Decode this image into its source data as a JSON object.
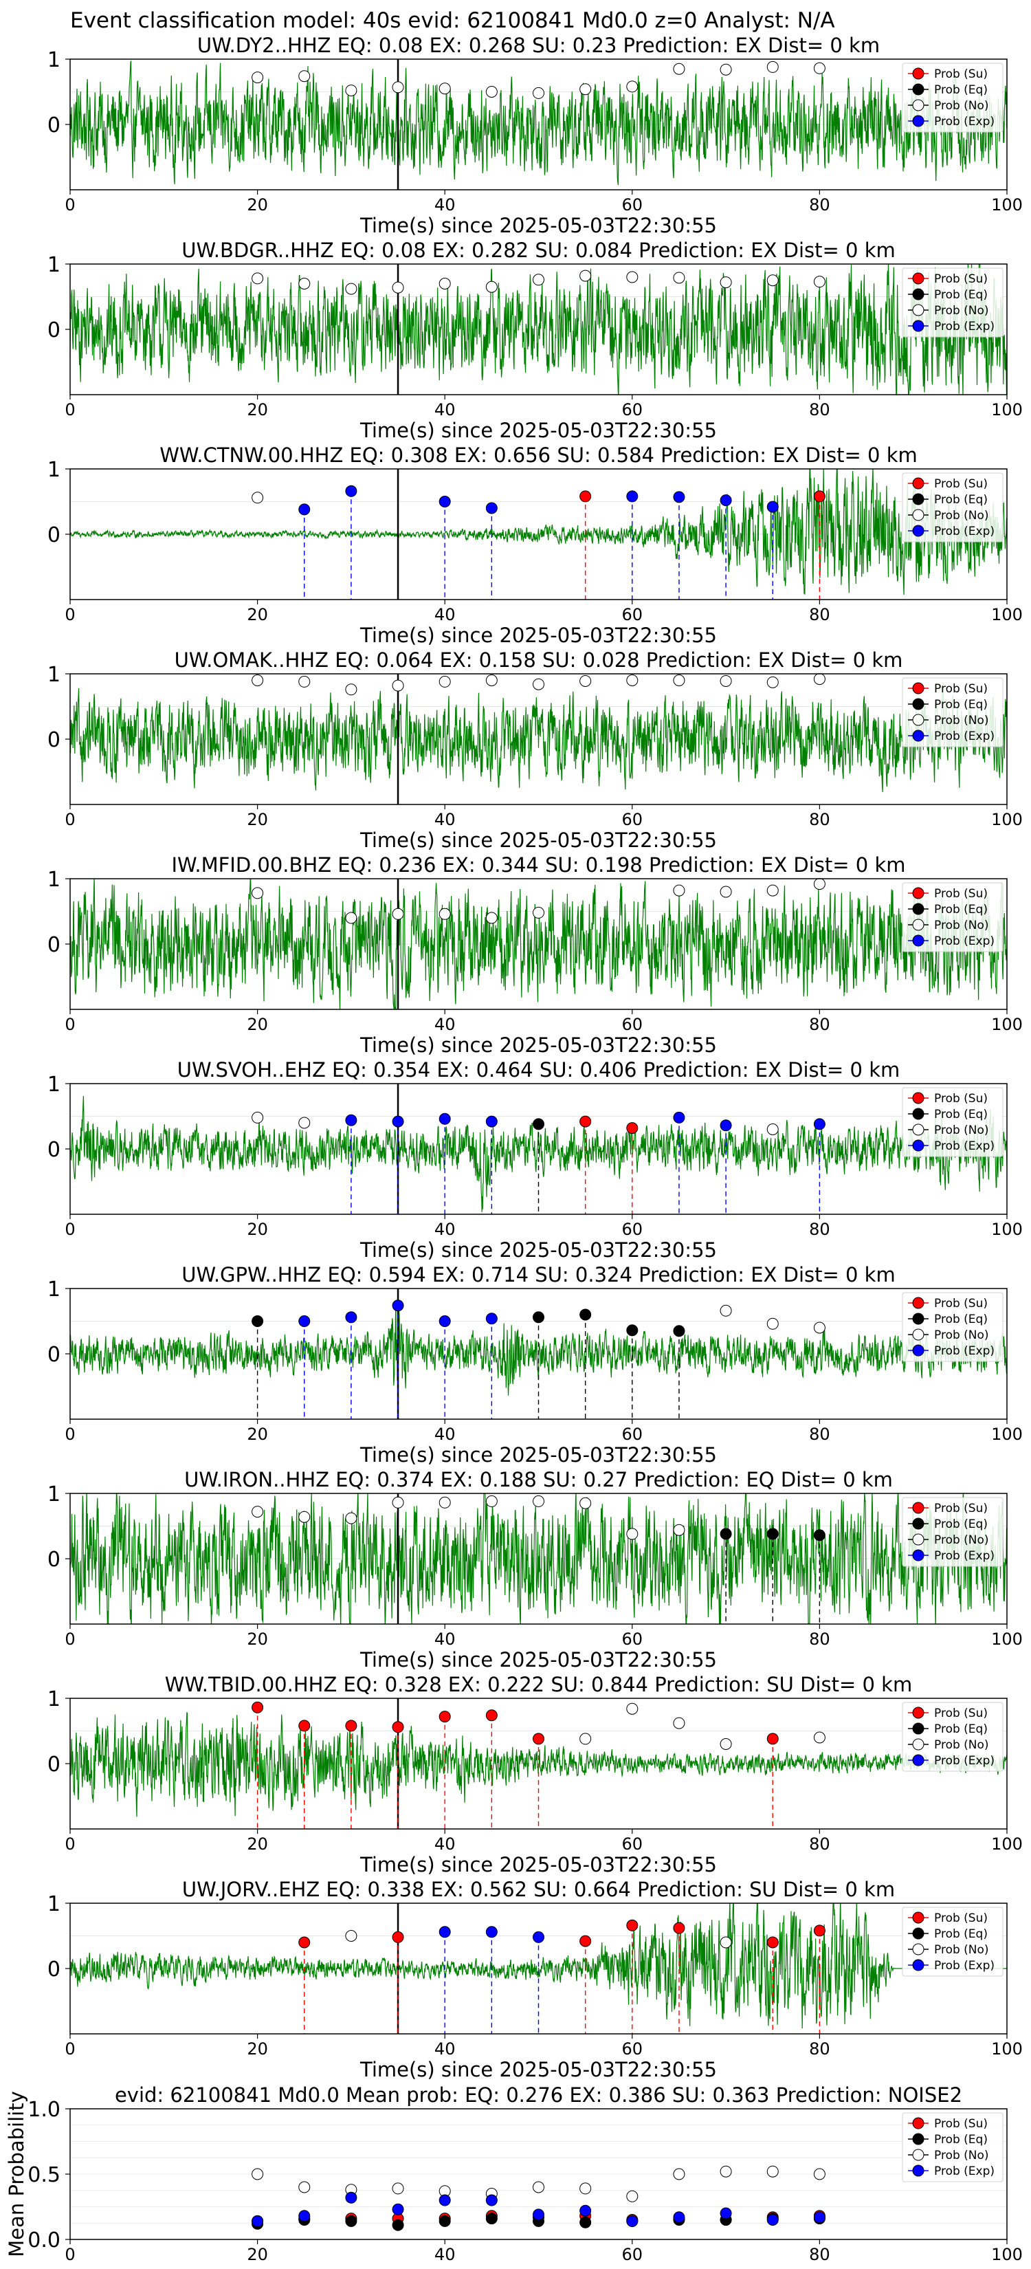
{
  "figure_title": "Event classification model: 40s evid: 62100841 Md0.0 z=0 Analyst: N/A",
  "legend_labels": [
    "Prob (Su)",
    "Prob (Eq)",
    "Prob (No)",
    "Prob (Exp)"
  ],
  "colors": {
    "su": "#ff0000",
    "eq": "#000000",
    "no": "#ffffff",
    "exp": "#0000ff",
    "wave": "#008000"
  },
  "chart_data": [
    {
      "type": "line",
      "title": "UW.DY2..HHZ   EQ: 0.08  EX: 0.268  SU: 0.23   Prediction: EX    Dist= 0 km",
      "xlabel": "Time(s) since 2025-05-03T22:30:55",
      "xlim": [
        0,
        100
      ],
      "ylim": [
        -1,
        1
      ],
      "xticks": [
        0,
        20,
        40,
        60,
        80,
        100
      ],
      "yticks": [
        0,
        1
      ],
      "origin_line_x": 35,
      "waveform": {
        "amp": 0.5,
        "profile": [
          [
            0,
            0.7
          ],
          [
            100,
            0.7
          ]
        ]
      },
      "x": [
        20,
        25,
        30,
        35,
        40,
        45,
        50,
        55,
        60,
        65,
        70,
        75,
        80
      ],
      "classes": [
        "no",
        "no",
        "no",
        "no",
        "no",
        "no",
        "no",
        "no",
        "no",
        "no",
        "no",
        "no",
        "no"
      ],
      "probs": [
        0.72,
        0.74,
        0.52,
        0.57,
        0.55,
        0.5,
        0.48,
        0.54,
        0.58,
        0.85,
        0.84,
        0.88,
        0.86
      ]
    },
    {
      "type": "line",
      "title": "UW.BDGR..HHZ   EQ: 0.08  EX: 0.282  SU: 0.084   Prediction: EX    Dist= 0 km",
      "xlabel": "Time(s) since 2025-05-03T22:30:55",
      "xlim": [
        0,
        100
      ],
      "ylim": [
        -1,
        1
      ],
      "xticks": [
        0,
        20,
        40,
        60,
        80,
        100
      ],
      "yticks": [
        0,
        1
      ],
      "origin_line_x": 35,
      "waveform": {
        "amp": 0.6,
        "profile": [
          [
            0,
            0.7
          ],
          [
            80,
            0.8
          ],
          [
            85,
            1.0
          ],
          [
            100,
            1.0
          ]
        ]
      },
      "x": [
        20,
        25,
        30,
        35,
        40,
        45,
        50,
        55,
        60,
        65,
        70,
        75,
        80
      ],
      "classes": [
        "no",
        "no",
        "no",
        "no",
        "no",
        "no",
        "no",
        "no",
        "no",
        "no",
        "no",
        "no",
        "no"
      ],
      "probs": [
        0.78,
        0.7,
        0.62,
        0.64,
        0.7,
        0.65,
        0.76,
        0.82,
        0.8,
        0.79,
        0.72,
        0.75,
        0.73
      ]
    },
    {
      "type": "line",
      "title": "WW.CTNW.00.HHZ   EQ: 0.308  EX: 0.656  SU: 0.584   Prediction: EX    Dist= 0 km",
      "xlabel": "Time(s) since 2025-05-03T22:30:55",
      "xlim": [
        0,
        100
      ],
      "ylim": [
        -1,
        1
      ],
      "xticks": [
        0,
        20,
        40,
        60,
        80,
        100
      ],
      "yticks": [
        0,
        1
      ],
      "origin_line_x": 35,
      "waveform": {
        "amp": 0.7,
        "profile": [
          [
            0,
            0.05
          ],
          [
            40,
            0.05
          ],
          [
            45,
            0.12
          ],
          [
            60,
            0.15
          ],
          [
            68,
            0.4
          ],
          [
            75,
            0.7
          ],
          [
            80,
            1.0
          ],
          [
            90,
            0.8
          ],
          [
            100,
            0.5
          ]
        ]
      },
      "x": [
        20,
        25,
        30,
        40,
        45,
        55,
        60,
        65,
        70,
        75,
        80
      ],
      "classes": [
        "no",
        "exp",
        "exp",
        "exp",
        "exp",
        "su",
        "exp",
        "exp",
        "exp",
        "exp",
        "su"
      ],
      "probs": [
        0.56,
        0.38,
        0.66,
        0.5,
        0.4,
        0.58,
        0.58,
        0.57,
        0.52,
        0.42,
        0.58
      ]
    },
    {
      "type": "line",
      "title": "UW.OMAK..HHZ   EQ: 0.064  EX: 0.158  SU: 0.028   Prediction: EX    Dist= 0 km",
      "xlabel": "Time(s) since 2025-05-03T22:30:55",
      "xlim": [
        0,
        100
      ],
      "ylim": [
        -1,
        1
      ],
      "xticks": [
        0,
        20,
        40,
        60,
        80,
        100
      ],
      "yticks": [
        0,
        1
      ],
      "origin_line_x": 35,
      "waveform": {
        "amp": 0.7,
        "profile": [
          [
            0,
            0.6
          ],
          [
            100,
            0.6
          ]
        ]
      },
      "x": [
        20,
        25,
        30,
        35,
        40,
        45,
        50,
        55,
        60,
        65,
        70,
        75,
        80
      ],
      "classes": [
        "no",
        "no",
        "no",
        "no",
        "no",
        "no",
        "no",
        "no",
        "no",
        "no",
        "no",
        "no",
        "no"
      ],
      "probs": [
        0.9,
        0.88,
        0.76,
        0.82,
        0.88,
        0.9,
        0.84,
        0.89,
        0.9,
        0.9,
        0.89,
        0.87,
        0.92
      ]
    },
    {
      "type": "line",
      "title": "IW.MFID.00.BHZ   EQ: 0.236  EX: 0.344  SU: 0.198   Prediction: EX    Dist= 0 km",
      "xlabel": "Time(s) since 2025-05-03T22:30:55",
      "xlim": [
        0,
        100
      ],
      "ylim": [
        -1,
        1
      ],
      "xticks": [
        0,
        20,
        40,
        60,
        80,
        100
      ],
      "yticks": [
        0,
        1
      ],
      "origin_line_x": 35,
      "waveform": {
        "amp": 0.7,
        "profile": [
          [
            0,
            0.8
          ],
          [
            100,
            0.8
          ]
        ]
      },
      "x": [
        20,
        30,
        35,
        40,
        45,
        50,
        65,
        70,
        75,
        80
      ],
      "classes": [
        "no",
        "no",
        "no",
        "no",
        "no",
        "no",
        "no",
        "no",
        "no",
        "no"
      ],
      "probs": [
        0.78,
        0.4,
        0.46,
        0.46,
        0.4,
        0.48,
        0.82,
        0.8,
        0.82,
        0.92
      ]
    },
    {
      "type": "line",
      "title": "UW.SVOH..EHZ   EQ: 0.354  EX: 0.464  SU: 0.406   Prediction: EX    Dist= 0 km",
      "xlabel": "Time(s) since 2025-05-03T22:30:55",
      "xlim": [
        0,
        100
      ],
      "ylim": [
        -1,
        1
      ],
      "xticks": [
        0,
        20,
        40,
        60,
        80,
        100
      ],
      "yticks": [
        0,
        1
      ],
      "origin_line_x": 35,
      "waveform": {
        "amp": 0.35,
        "profile": [
          [
            0,
            0.35
          ],
          [
            100,
            0.35
          ]
        ],
        "bursts": [
          [
            2,
            0.8
          ],
          [
            44,
            0.8
          ],
          [
            68,
            0.6
          ],
          [
            93,
            0.7
          ],
          [
            98,
            0.9
          ]
        ]
      },
      "x": [
        20,
        25,
        30,
        35,
        40,
        45,
        50,
        55,
        60,
        65,
        70,
        75,
        80
      ],
      "classes": [
        "no",
        "no",
        "exp",
        "exp",
        "exp",
        "exp",
        "eq",
        "su",
        "su",
        "exp",
        "exp",
        "no",
        "exp"
      ],
      "probs": [
        0.48,
        0.4,
        0.44,
        0.42,
        0.46,
        0.42,
        0.38,
        0.42,
        0.32,
        0.48,
        0.36,
        0.3,
        0.38
      ]
    },
    {
      "type": "line",
      "title": "UW.GPW..HHZ   EQ: 0.594  EX: 0.714  SU: 0.324   Prediction: EX    Dist= 0 km",
      "xlabel": "Time(s) since 2025-05-03T22:30:55",
      "xlim": [
        0,
        100
      ],
      "ylim": [
        -1,
        1
      ],
      "xticks": [
        0,
        20,
        40,
        60,
        80,
        100
      ],
      "yticks": [
        0,
        1
      ],
      "origin_line_x": 35,
      "waveform": {
        "amp": 0.3,
        "profile": [
          [
            0,
            0.3
          ],
          [
            100,
            0.3
          ]
        ],
        "bursts": [
          [
            35,
            0.9
          ],
          [
            47,
            0.95
          ]
        ]
      },
      "x": [
        20,
        25,
        30,
        35,
        40,
        45,
        50,
        55,
        60,
        65,
        70,
        75,
        80
      ],
      "classes": [
        "eq",
        "exp",
        "exp",
        "exp",
        "exp",
        "exp",
        "eq",
        "eq",
        "eq",
        "eq",
        "no",
        "no",
        "no"
      ],
      "probs": [
        0.5,
        0.5,
        0.56,
        0.74,
        0.5,
        0.54,
        0.56,
        0.6,
        0.36,
        0.35,
        0.66,
        0.46,
        0.4
      ]
    },
    {
      "type": "line",
      "title": "UW.IRON..HHZ   EQ: 0.374  EX: 0.188  SU: 0.27   Prediction: EQ    Dist= 0 km",
      "xlabel": "Time(s) since 2025-05-03T22:30:55",
      "xlim": [
        0,
        100
      ],
      "ylim": [
        -1,
        1
      ],
      "xticks": [
        0,
        20,
        40,
        60,
        80,
        100
      ],
      "yticks": [
        0,
        1
      ],
      "origin_line_x": 35,
      "waveform": {
        "amp": 0.8,
        "profile": [
          [
            0,
            0.9
          ],
          [
            100,
            0.9
          ]
        ]
      },
      "x": [
        20,
        25,
        30,
        35,
        40,
        45,
        50,
        55,
        60,
        65,
        70,
        75,
        80
      ],
      "classes": [
        "no",
        "no",
        "no",
        "no",
        "no",
        "no",
        "no",
        "no",
        "no",
        "no",
        "eq",
        "eq",
        "eq"
      ],
      "probs": [
        0.72,
        0.64,
        0.62,
        0.86,
        0.86,
        0.88,
        0.88,
        0.85,
        0.38,
        0.44,
        0.38,
        0.38,
        0.36
      ]
    },
    {
      "type": "line",
      "title": "WW.TBID.00.HHZ   EQ: 0.328  EX: 0.222  SU: 0.844   Prediction: SU    Dist= 0 km",
      "xlabel": "Time(s) since 2025-05-03T22:30:55",
      "xlim": [
        0,
        100
      ],
      "ylim": [
        -1,
        1
      ],
      "xticks": [
        0,
        20,
        40,
        60,
        80,
        100
      ],
      "yticks": [
        0,
        1
      ],
      "origin_line_x": 35,
      "waveform": {
        "amp": 0.5,
        "profile": [
          [
            0,
            0.6
          ],
          [
            20,
            0.7
          ],
          [
            35,
            0.5
          ],
          [
            45,
            0.3
          ],
          [
            60,
            0.15
          ],
          [
            100,
            0.15
          ]
        ],
        "bursts": [
          [
            14,
            0.9
          ],
          [
            18,
            0.9
          ],
          [
            42,
            0.6
          ]
        ]
      },
      "x": [
        20,
        25,
        30,
        35,
        40,
        45,
        50,
        55,
        60,
        65,
        70,
        75,
        80
      ],
      "classes": [
        "su",
        "su",
        "su",
        "su",
        "su",
        "su",
        "su",
        "no",
        "no",
        "no",
        "no",
        "su",
        "no"
      ],
      "probs": [
        0.86,
        0.58,
        0.58,
        0.56,
        0.72,
        0.74,
        0.38,
        0.38,
        0.84,
        0.62,
        0.3,
        0.38,
        0.4
      ]
    },
    {
      "type": "line",
      "title": "UW.JORV..EHZ   EQ: 0.338  EX: 0.562  SU: 0.664   Prediction: SU    Dist= 0 km",
      "xlabel": "Time(s) since 2025-05-03T22:30:55",
      "xlim": [
        0,
        100
      ],
      "ylim": [
        -1,
        1
      ],
      "xticks": [
        0,
        20,
        40,
        60,
        80,
        100
      ],
      "yticks": [
        0,
        1
      ],
      "origin_line_x": 35,
      "waveform": {
        "amp": 0.7,
        "profile": [
          [
            0,
            0.25
          ],
          [
            15,
            0.2
          ],
          [
            40,
            0.12
          ],
          [
            55,
            0.2
          ],
          [
            60,
            0.6
          ],
          [
            70,
            0.9
          ],
          [
            85,
            0.9
          ],
          [
            88,
            0
          ],
          [
            100,
            0
          ]
        ]
      },
      "x": [
        25,
        30,
        35,
        40,
        45,
        50,
        55,
        60,
        65,
        70,
        75,
        80
      ],
      "classes": [
        "su",
        "no",
        "su",
        "exp",
        "exp",
        "exp",
        "su",
        "su",
        "su",
        "no",
        "su",
        "su"
      ],
      "probs": [
        0.4,
        0.5,
        0.48,
        0.56,
        0.56,
        0.48,
        0.42,
        0.66,
        0.62,
        0.4,
        0.4,
        0.58
      ]
    },
    {
      "type": "scatter",
      "title": "evid: 62100841  Md0.0   Mean prob:   EQ: 0.276  EX: 0.386  SU: 0.363   Prediction: NOISE2",
      "ylabel": "Mean Probability",
      "xlim": [
        0,
        100
      ],
      "ylim": [
        0,
        1
      ],
      "xticks": [
        0,
        20,
        40,
        60,
        80,
        100
      ],
      "yticks": [
        0.0,
        0.5,
        1.0
      ],
      "ytick_labels": [
        "0.0",
        "0.5",
        "1.0"
      ],
      "grid": true,
      "x": [
        20,
        25,
        30,
        35,
        40,
        45,
        50,
        55,
        60,
        65,
        70,
        75,
        80
      ],
      "series": [
        {
          "name": "Prob (Su)",
          "class": "su",
          "values": [
            0.14,
            0.16,
            0.16,
            0.16,
            0.16,
            0.18,
            0.17,
            0.18,
            0.15,
            0.16,
            0.15,
            0.17,
            0.18
          ]
        },
        {
          "name": "Prob (Eq)",
          "class": "eq",
          "values": [
            0.12,
            0.15,
            0.14,
            0.11,
            0.14,
            0.16,
            0.14,
            0.13,
            0.14,
            0.15,
            0.15,
            0.16,
            0.16
          ]
        },
        {
          "name": "Prob (No)",
          "class": "no",
          "values": [
            0.5,
            0.4,
            0.38,
            0.39,
            0.37,
            0.35,
            0.4,
            0.39,
            0.33,
            0.5,
            0.52,
            0.52,
            0.5
          ]
        },
        {
          "name": "Prob (Exp)",
          "class": "exp",
          "values": [
            0.14,
            0.18,
            0.32,
            0.23,
            0.3,
            0.3,
            0.19,
            0.22,
            0.14,
            0.17,
            0.2,
            0.15,
            0.17
          ]
        }
      ]
    }
  ]
}
